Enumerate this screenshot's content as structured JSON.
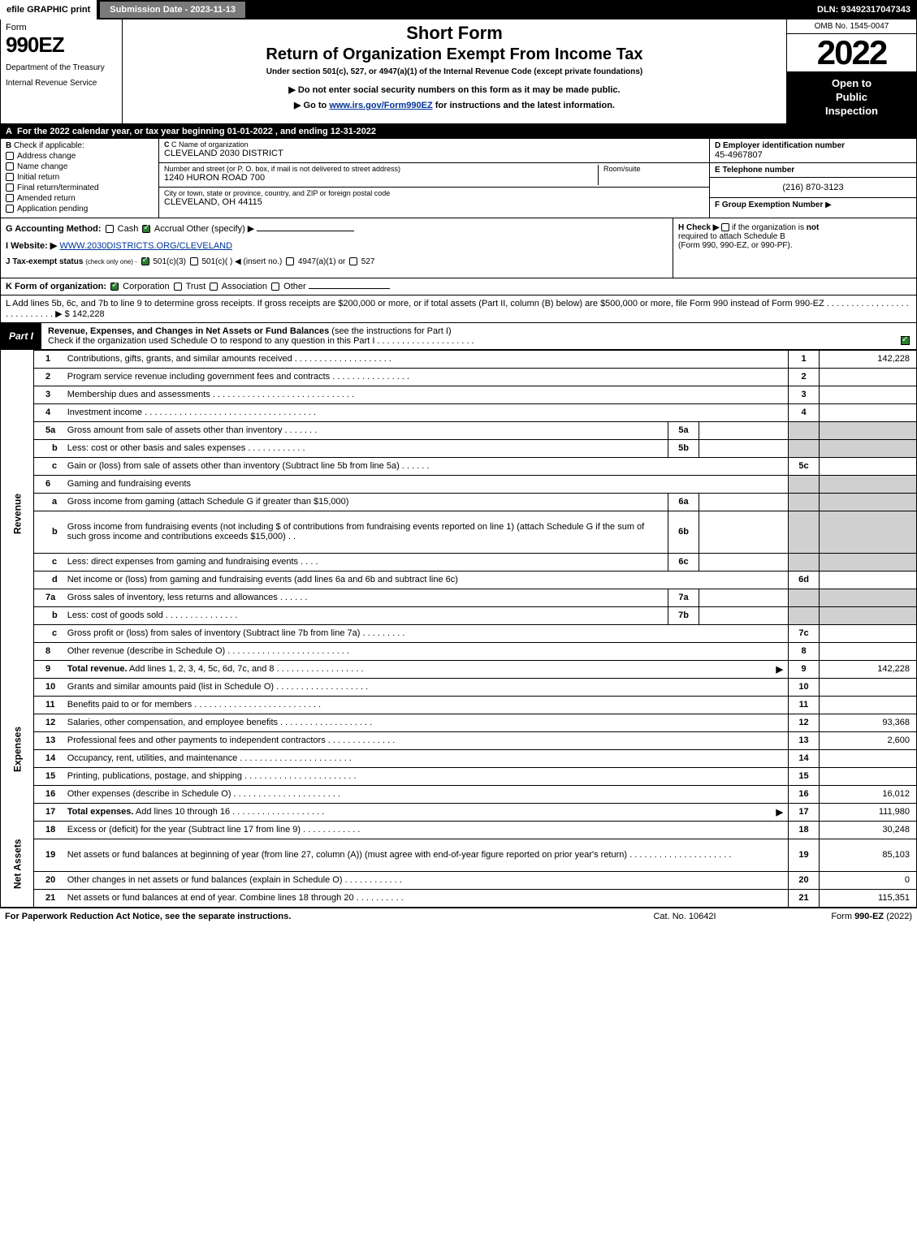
{
  "topbar": {
    "efile": "efile GRAPHIC print",
    "submission": "Submission Date - 2023-11-13",
    "dln": "DLN: 93492317047343"
  },
  "header": {
    "form_label": "Form",
    "form_number": "990EZ",
    "dept1": "Department of the Treasury",
    "dept2": "Internal Revenue Service",
    "short_form": "Short Form",
    "title": "Return of Organization Exempt From Income Tax",
    "subtitle": "Under section 501(c), 527, or 4947(a)(1) of the Internal Revenue Code (except private foundations)",
    "note1": "▶ Do not enter social security numbers on this form as it may be made public.",
    "note2_pre": "▶ Go to ",
    "note2_link": "www.irs.gov/Form990EZ",
    "note2_post": " for instructions and the latest information.",
    "omb": "OMB No. 1545-0047",
    "year": "2022",
    "inspection1": "Open to",
    "inspection2": "Public",
    "inspection3": "Inspection"
  },
  "lineA": {
    "text": "For the 2022 calendar year, or tax year beginning 01-01-2022 , and ending 12-31-2022"
  },
  "sectionB": {
    "header": "Check if applicable:",
    "items": [
      "Address change",
      "Name change",
      "Initial return",
      "Final return/terminated",
      "Amended return",
      "Application pending"
    ]
  },
  "sectionC": {
    "name_label": "C Name of organization",
    "name_val": "CLEVELAND 2030 DISTRICT",
    "street_label": "Number and street (or P. O. box, if mail is not delivered to street address)",
    "street_val": "1240 HURON ROAD 700",
    "room_label": "Room/suite",
    "city_label": "City or town, state or province, country, and ZIP or foreign postal code",
    "city_val": "CLEVELAND, OH  44115"
  },
  "sectionDEF": {
    "d_label": "D Employer identification number",
    "d_val": "45-4967807",
    "e_label": "E Telephone number",
    "e_val": "(216) 870-3123",
    "f_label": "F Group Exemption Number",
    "f_arrow": "▶"
  },
  "sectionG": {
    "accounting": "G Accounting Method:",
    "cash": "Cash",
    "accrual": "Accrual",
    "other": "Other (specify) ▶",
    "website_label": "I Website: ▶",
    "website_val": "WWW.2030DISTRICTS.ORG/CLEVELAND",
    "tax_exempt_pre": "J Tax-exempt status",
    "tax_exempt_note": "(check only one) -",
    "te_501c3": "501(c)(3)",
    "te_501c": "501(c)(  ) ◀ (insert no.)",
    "te_4947": "4947(a)(1) or",
    "te_527": "527"
  },
  "sectionH": {
    "text": "H  Check ▶",
    "text2": "if the organization is",
    "not": "not",
    "text3": "required to attach Schedule B",
    "text4": "(Form 990, 990-EZ, or 990-PF)."
  },
  "lineK": {
    "label": "K Form of organization:",
    "corp": "Corporation",
    "trust": "Trust",
    "assoc": "Association",
    "other": "Other"
  },
  "lineL": {
    "text": "L Add lines 5b, 6c, and 7b to line 9 to determine gross receipts. If gross receipts are $200,000 or more, or if total assets (Part II, column (B) below) are $500,000 or more, file Form 990 instead of Form 990-EZ .  .  .  .  .  .  .  .  .  .  .  .  .  .  .  .  .  .  .  .  .  .  .  .  .  .  .  ▶ $",
    "amount": "142,228"
  },
  "partI": {
    "label": "Part I",
    "title": "Revenue, Expenses, and Changes in Net Assets or Fund Balances",
    "note": "(see the instructions for Part I)",
    "subnote": "Check if the organization used Schedule O to respond to any question in this Part I .  .  .  .  .  .  .  .  .  .  .  .  .  .  .  .  .  .  .  ."
  },
  "revenue": {
    "side": "Revenue",
    "rows": [
      {
        "n": "1",
        "d": "Contributions, gifts, grants, and similar amounts received .  .  .  .  .  .  .  .  .  .  .  .  .  .  .  .  .  .  .  .",
        "rn": "1",
        "rv": "142,228"
      },
      {
        "n": "2",
        "d": "Program service revenue including government fees and contracts .  .  .  .  .  .  .  .  .  .  .  .  .  .  .  .",
        "rn": "2",
        "rv": ""
      },
      {
        "n": "3",
        "d": "Membership dues and assessments .  .  .  .  .  .  .  .  .  .  .  .  .  .  .  .  .  .  .  .  .  .  .  .  .  .  .  .  .",
        "rn": "3",
        "rv": ""
      },
      {
        "n": "4",
        "d": "Investment income .  .  .  .  .  .  .  .  .  .  .  .  .  .  .  .  .  .  .  .  .  .  .  .  .  .  .  .  .  .  .  .  .  .  .",
        "rn": "4",
        "rv": ""
      },
      {
        "n": "5a",
        "d": "Gross amount from sale of assets other than inventory .  .  .  .  .  .  .",
        "mn": "5a",
        "mv": "",
        "shaded": true
      },
      {
        "n": "b",
        "d": "Less: cost or other basis and sales expenses .  .  .  .  .  .  .  .  .  .  .  .",
        "mn": "5b",
        "mv": "",
        "shaded": true
      },
      {
        "n": "c",
        "d": "Gain or (loss) from sale of assets other than inventory (Subtract line 5b from line 5a) .  .  .  .  .  .",
        "rn": "5c",
        "rv": ""
      },
      {
        "n": "6",
        "d": "Gaming and fundraising events",
        "shaded": true
      },
      {
        "n": "a",
        "d": "Gross income from gaming (attach Schedule G if greater than $15,000)",
        "mn": "6a",
        "mv": "",
        "shaded": true
      },
      {
        "n": "b",
        "d": "Gross income from fundraising events (not including $                       of contributions from fundraising events reported on line 1) (attach Schedule G if the sum of such gross income and contributions exceeds $15,000)   .  .",
        "mn": "6b",
        "mv": "",
        "shaded": true,
        "tall": true
      },
      {
        "n": "c",
        "d": "Less: direct expenses from gaming and fundraising events   .  .  .  .",
        "mn": "6c",
        "mv": "",
        "shaded": true
      },
      {
        "n": "d",
        "d": "Net income or (loss) from gaming and fundraising events (add lines 6a and 6b and subtract line 6c)",
        "rn": "6d",
        "rv": ""
      },
      {
        "n": "7a",
        "d": "Gross sales of inventory, less returns and allowances .  .  .  .  .  .",
        "mn": "7a",
        "mv": "",
        "shaded": true
      },
      {
        "n": "b",
        "d": "Less: cost of goods sold        .  .  .  .  .  .  .  .  .  .  .  .  .  .  .",
        "mn": "7b",
        "mv": "",
        "shaded": true
      },
      {
        "n": "c",
        "d": "Gross profit or (loss) from sales of inventory (Subtract line 7b from line 7a) .  .  .  .  .  .  .  .  .",
        "rn": "7c",
        "rv": ""
      },
      {
        "n": "8",
        "d": "Other revenue (describe in Schedule O) .  .  .  .  .  .  .  .  .  .  .  .  .  .  .  .  .  .  .  .  .  .  .  .  .",
        "rn": "8",
        "rv": ""
      },
      {
        "n": "9",
        "d": "Total revenue. Add lines 1, 2, 3, 4, 5c, 6d, 7c, and 8  .  .  .  .  .  .  .  .  .  .  .  .  .  .  .  .  .  .",
        "rn": "9",
        "rv": "142,228",
        "arrow": true,
        "bold": true
      }
    ]
  },
  "expenses": {
    "side": "Expenses",
    "rows": [
      {
        "n": "10",
        "d": "Grants and similar amounts paid (list in Schedule O) .  .  .  .  .  .  .  .  .  .  .  .  .  .  .  .  .  .  .",
        "rn": "10",
        "rv": ""
      },
      {
        "n": "11",
        "d": "Benefits paid to or for members     .  .  .  .  .  .  .  .  .  .  .  .  .  .  .  .  .  .  .  .  .  .  .  .  .  .",
        "rn": "11",
        "rv": ""
      },
      {
        "n": "12",
        "d": "Salaries, other compensation, and employee benefits .  .  .  .  .  .  .  .  .  .  .  .  .  .  .  .  .  .  .",
        "rn": "12",
        "rv": "93,368"
      },
      {
        "n": "13",
        "d": "Professional fees and other payments to independent contractors .  .  .  .  .  .  .  .  .  .  .  .  .  .",
        "rn": "13",
        "rv": "2,600"
      },
      {
        "n": "14",
        "d": "Occupancy, rent, utilities, and maintenance .  .  .  .  .  .  .  .  .  .  .  .  .  .  .  .  .  .  .  .  .  .  .",
        "rn": "14",
        "rv": ""
      },
      {
        "n": "15",
        "d": "Printing, publications, postage, and shipping .  .  .  .  .  .  .  .  .  .  .  .  .  .  .  .  .  .  .  .  .  .  .",
        "rn": "15",
        "rv": ""
      },
      {
        "n": "16",
        "d": "Other expenses (describe in Schedule O)     .  .  .  .  .  .  .  .  .  .  .  .  .  .  .  .  .  .  .  .  .  .",
        "rn": "16",
        "rv": "16,012"
      },
      {
        "n": "17",
        "d": "Total expenses. Add lines 10 through 16      .  .  .  .  .  .  .  .  .  .  .  .  .  .  .  .  .  .  .",
        "rn": "17",
        "rv": "111,980",
        "arrow": true,
        "bold": true
      }
    ]
  },
  "netassets": {
    "side": "Net Assets",
    "rows": [
      {
        "n": "18",
        "d": "Excess or (deficit) for the year (Subtract line 17 from line 9)       .  .  .  .  .  .  .  .  .  .  .  .",
        "rn": "18",
        "rv": "30,248"
      },
      {
        "n": "19",
        "d": "Net assets or fund balances at beginning of year (from line 27, column (A)) (must agree with end-of-year figure reported on prior year's return) .  .  .  .  .  .  .  .  .  .  .  .  .  .  .  .  .  .  .  .  .",
        "rn": "19",
        "rv": "85,103",
        "tall": true
      },
      {
        "n": "20",
        "d": "Other changes in net assets or fund balances (explain in Schedule O) .  .  .  .  .  .  .  .  .  .  .  .",
        "rn": "20",
        "rv": "0"
      },
      {
        "n": "21",
        "d": "Net assets or fund balances at end of year. Combine lines 18 through 20 .  .  .  .  .  .  .  .  .  .",
        "rn": "21",
        "rv": "115,351"
      }
    ]
  },
  "footer": {
    "left": "For Paperwork Reduction Act Notice, see the separate instructions.",
    "center": "Cat. No. 10642I",
    "right_pre": "Form ",
    "right_bold": "990-EZ",
    "right_post": " (2022)"
  },
  "colors": {
    "black": "#000000",
    "white": "#ffffff",
    "gray_header": "#7a7a7a",
    "checked_green": "#2e7d32",
    "shaded_cell": "#d0d0d0",
    "link": "#003399"
  }
}
